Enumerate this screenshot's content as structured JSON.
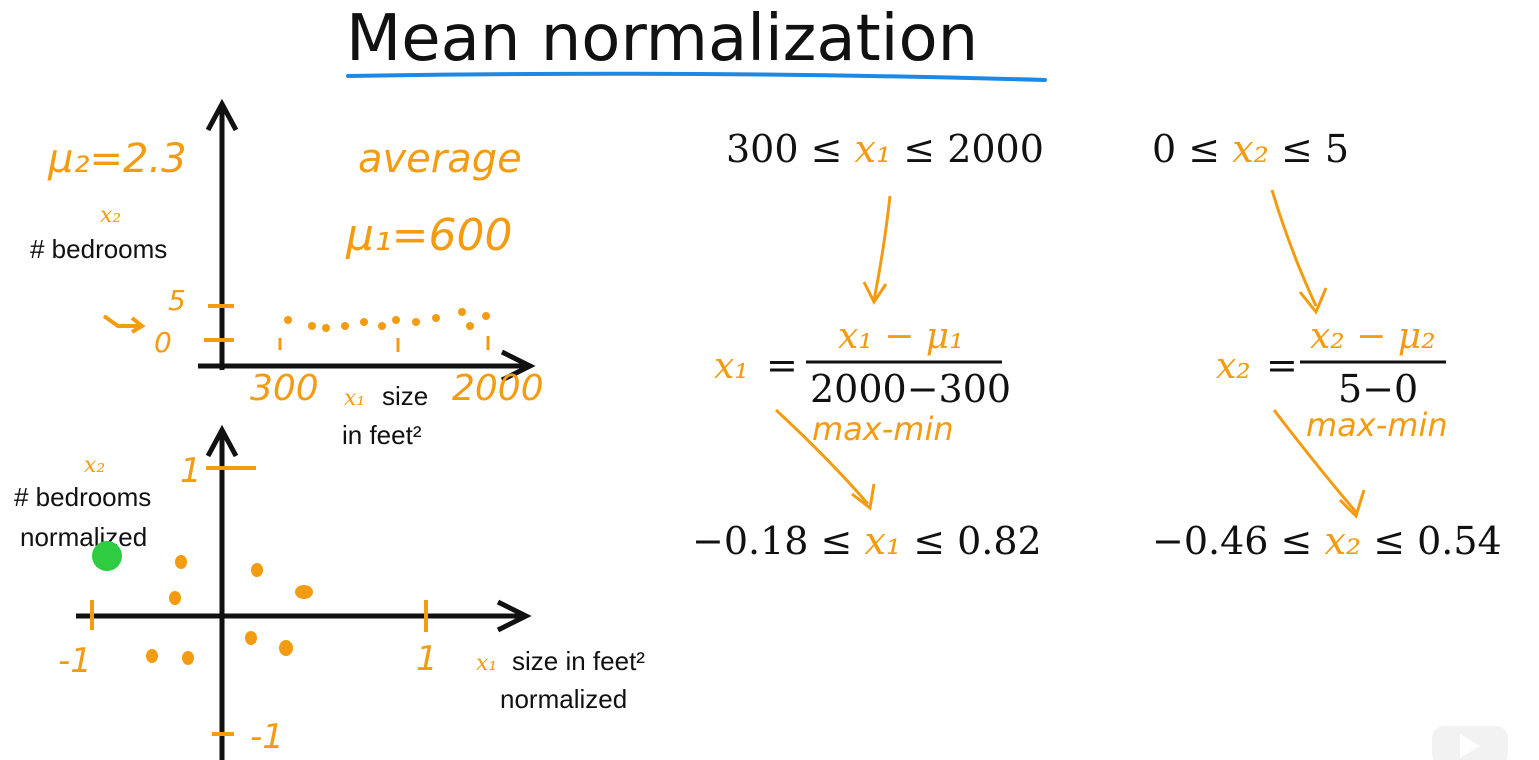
{
  "colors": {
    "ink": "#111111",
    "hand": "#f39c12",
    "underline": "#1e88e5",
    "cursor": "#2ecc40"
  },
  "title": "Mean normalization",
  "top_chart": {
    "mu2": "μ₂=2.3",
    "average": "average",
    "mu1": "μ₁=600",
    "ylabel_var": "x₂",
    "ylabel": "# bedrooms",
    "y_tick_5": "5",
    "y_tick_0": "0",
    "x_tick_300": "300",
    "x_tick_2000": "2000",
    "xlabel_var": "x₁",
    "xlabel": "size",
    "xlabel_line2": "in feet²"
  },
  "bottom_chart": {
    "ylabel_var": "x₂",
    "ylabel": "# bedrooms",
    "ylabel_line2": "normalized",
    "y_tick_1": "1",
    "y_tick_neg1": "-1",
    "x_tick_neg1": "-1",
    "x_tick_1": "1",
    "xlabel_var": "x₁",
    "xlabel": "size in feet²",
    "xlabel_line2": "normalized"
  },
  "left_col": {
    "range_a": "300 ≤ ",
    "range_var": "x₁",
    "range_b": " ≤ 2000",
    "lhs_var": "x₁",
    "eq": "=",
    "numerator_var": "x₁",
    "numerator_op": " − ",
    "numerator_mu": "μ₁",
    "denominator": "2000−300",
    "note": "max-min",
    "result_a": "−0.18 ≤ ",
    "result_var": "x₁",
    "result_b": " ≤ 0.82"
  },
  "right_col": {
    "range_a": "0 ≤ ",
    "range_var": "x₂",
    "range_b": " ≤ 5",
    "lhs_var": "x₂",
    "eq": "=",
    "numerator_var": "x₂",
    "numerator_op": " − ",
    "numerator_mu": "μ₂",
    "denominator": "5−0",
    "note": "max-min",
    "result_a": "−0.46 ≤ ",
    "result_var": "x₂",
    "result_b": " ≤ 0.54"
  }
}
